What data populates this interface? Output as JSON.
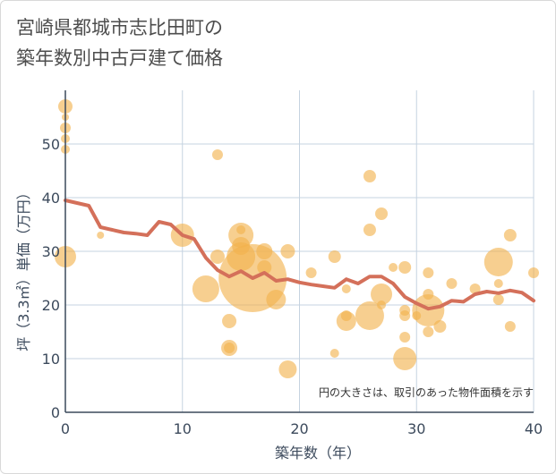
{
  "header": {
    "title_line1": "宮崎県都城市志比田町の",
    "title_line2": "築年数別中古戸建て価格"
  },
  "chart_data": {
    "type": "scatter",
    "title": "宮崎県都城市志比田町の築年数別中古戸建て価格",
    "xlabel": "築年数（年）",
    "ylabel": "坪（3.3㎡）単価（万円）",
    "xlim": [
      0,
      40
    ],
    "ylim": [
      0,
      60
    ],
    "x_ticks": [
      "0",
      "10",
      "20",
      "30",
      "40"
    ],
    "y_ticks": [
      "0",
      "10",
      "20",
      "30",
      "40",
      "50"
    ],
    "grid": true,
    "note": "円の大きさは、取引のあった物件面積を示す",
    "colors": {
      "bubble": "#f2b24c",
      "line": "#d4705a",
      "grid": "#c5d3e0",
      "axis": "#3c4a5c"
    },
    "points": [
      {
        "x": 0,
        "y": 57,
        "s": 8
      },
      {
        "x": 0,
        "y": 55,
        "s": 4
      },
      {
        "x": 0,
        "y": 53,
        "s": 6
      },
      {
        "x": 0,
        "y": 51,
        "s": 5
      },
      {
        "x": 0,
        "y": 49,
        "s": 5
      },
      {
        "x": 0,
        "y": 29,
        "s": 12
      },
      {
        "x": 3,
        "y": 33,
        "s": 4
      },
      {
        "x": 10,
        "y": 33,
        "s": 13
      },
      {
        "x": 12,
        "y": 23,
        "s": 15
      },
      {
        "x": 13,
        "y": 48,
        "s": 6
      },
      {
        "x": 13,
        "y": 29,
        "s": 8
      },
      {
        "x": 14,
        "y": 17,
        "s": 8
      },
      {
        "x": 14,
        "y": 12,
        "s": 9
      },
      {
        "x": 14,
        "y": 12,
        "s": 6
      },
      {
        "x": 15,
        "y": 34,
        "s": 5
      },
      {
        "x": 15,
        "y": 33,
        "s": 14
      },
      {
        "x": 15,
        "y": 31,
        "s": 10
      },
      {
        "x": 15,
        "y": 29,
        "s": 16
      },
      {
        "x": 16,
        "y": 25,
        "s": 38
      },
      {
        "x": 17,
        "y": 30,
        "s": 9
      },
      {
        "x": 17,
        "y": 27,
        "s": 8
      },
      {
        "x": 18,
        "y": 21,
        "s": 11
      },
      {
        "x": 19,
        "y": 30,
        "s": 8
      },
      {
        "x": 19,
        "y": 8,
        "s": 10
      },
      {
        "x": 21,
        "y": 26,
        "s": 6
      },
      {
        "x": 23,
        "y": 29,
        "s": 7
      },
      {
        "x": 23,
        "y": 11,
        "s": 5
      },
      {
        "x": 24,
        "y": 23,
        "s": 5
      },
      {
        "x": 24,
        "y": 18,
        "s": 6
      },
      {
        "x": 24,
        "y": 17,
        "s": 11
      },
      {
        "x": 26,
        "y": 44,
        "s": 7
      },
      {
        "x": 26,
        "y": 34,
        "s": 7
      },
      {
        "x": 26,
        "y": 18,
        "s": 16
      },
      {
        "x": 27,
        "y": 37,
        "s": 7
      },
      {
        "x": 27,
        "y": 22,
        "s": 12
      },
      {
        "x": 27,
        "y": 20,
        "s": 5
      },
      {
        "x": 28,
        "y": 27,
        "s": 5
      },
      {
        "x": 29,
        "y": 27,
        "s": 7
      },
      {
        "x": 29,
        "y": 19,
        "s": 6
      },
      {
        "x": 29,
        "y": 18,
        "s": 6
      },
      {
        "x": 29,
        "y": 14,
        "s": 6
      },
      {
        "x": 29,
        "y": 10,
        "s": 13
      },
      {
        "x": 30,
        "y": 18,
        "s": 5
      },
      {
        "x": 31,
        "y": 26,
        "s": 6
      },
      {
        "x": 31,
        "y": 22,
        "s": 6
      },
      {
        "x": 31,
        "y": 19,
        "s": 18
      },
      {
        "x": 31,
        "y": 15,
        "s": 6
      },
      {
        "x": 32,
        "y": 16,
        "s": 7
      },
      {
        "x": 33,
        "y": 24,
        "s": 6
      },
      {
        "x": 35,
        "y": 23,
        "s": 6
      },
      {
        "x": 37,
        "y": 28,
        "s": 16
      },
      {
        "x": 37,
        "y": 24,
        "s": 5
      },
      {
        "x": 37,
        "y": 21,
        "s": 6
      },
      {
        "x": 38,
        "y": 33,
        "s": 7
      },
      {
        "x": 38,
        "y": 16,
        "s": 6
      },
      {
        "x": 40,
        "y": 26,
        "s": 6
      }
    ],
    "trend": {
      "x": [
        0,
        1,
        2,
        3,
        4,
        5,
        6,
        7,
        8,
        9,
        10,
        11,
        12,
        13,
        14,
        15,
        16,
        17,
        18,
        19,
        20,
        21,
        22,
        23,
        24,
        25,
        26,
        27,
        28,
        29,
        30,
        31,
        32,
        33,
        34,
        35,
        36,
        37,
        38,
        39,
        40
      ],
      "y": [
        39.5,
        39,
        38.5,
        34.5,
        34,
        33.5,
        33.3,
        33,
        35.5,
        35,
        33,
        32.3,
        28.8,
        26.5,
        25.3,
        26.3,
        25,
        26,
        24.5,
        24.8,
        24.2,
        23.8,
        23.5,
        23.2,
        24.8,
        24,
        25.3,
        25.3,
        24,
        21.5,
        20.3,
        19.3,
        19.7,
        20.8,
        20.6,
        22,
        22.5,
        22.2,
        22.7,
        22.3,
        20.8
      ]
    }
  }
}
